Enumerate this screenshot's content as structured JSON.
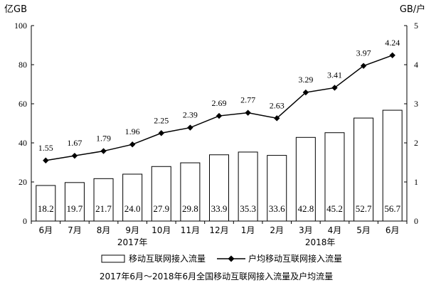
{
  "chart_data": {
    "type": "bar+line",
    "title": "2017年6月～2018年6月全国移动互联网接入流量及户均流量",
    "categories": [
      "6月",
      "7月",
      "8月",
      "9月",
      "10月",
      "11月",
      "12月",
      "1月",
      "2月",
      "3月",
      "4月",
      "5月",
      "6月"
    ],
    "year_groups": [
      {
        "label": "2017年",
        "from": 0,
        "to": 6
      },
      {
        "label": "2018年",
        "from": 7,
        "to": 12
      }
    ],
    "left_axis": {
      "unit": "亿GB",
      "min": 0,
      "max": 100,
      "ticks": [
        0,
        20,
        40,
        60,
        80,
        100
      ]
    },
    "right_axis": {
      "unit": "GB/户",
      "min": 0,
      "max": 5,
      "ticks": [
        0,
        1,
        2,
        3,
        4,
        5
      ]
    },
    "series": [
      {
        "name": "移动互联网接入流量",
        "type": "bar",
        "axis": "left",
        "values": [
          18.2,
          19.7,
          21.7,
          24.0,
          27.9,
          29.8,
          33.9,
          35.3,
          33.6,
          42.8,
          45.2,
          52.7,
          56.7
        ],
        "labels": [
          "18.2",
          "19.7",
          "21.7",
          "24.0",
          "27.9",
          "29.8",
          "33.9",
          "35.3",
          "33.6",
          "42.8",
          "45.2",
          "52.7",
          "56.7"
        ]
      },
      {
        "name": "户均移动互联网接入流量",
        "type": "line",
        "axis": "right",
        "marker": "diamond",
        "values": [
          1.55,
          1.67,
          1.79,
          1.96,
          2.25,
          2.39,
          2.69,
          2.77,
          2.63,
          3.29,
          3.41,
          3.97,
          4.24
        ],
        "labels": [
          "1.55",
          "1.67",
          "1.79",
          "1.96",
          "2.25",
          "2.39",
          "2.69",
          "2.77",
          "2.63",
          "3.29",
          "3.41",
          "3.97",
          "4.24"
        ]
      }
    ],
    "legend": {
      "position": "bottom",
      "bar_label": "移动互联网接入流量",
      "line_label": "户均移动互联网接入流量"
    },
    "grid": false
  }
}
